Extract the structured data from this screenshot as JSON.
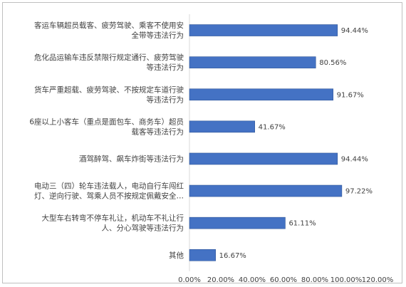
{
  "chart_data": {
    "type": "bar",
    "orientation": "horizontal",
    "title": "",
    "xlabel": "",
    "ylabel": "",
    "categories": [
      [
        "客运车辆超员载客、疲劳驾驶、乘客不使用安",
        "全带等违法行为"
      ],
      [
        "危化品运输车违反禁限行规定通行、疲劳驾驶",
        "等违法行为"
      ],
      [
        "货车严重超载、疲劳驾驶、不按规定车道行驶",
        "等违法行为"
      ],
      [
        "6座以上小客车（重点是面包车、商务车）超员",
        "载客等违法行为"
      ],
      [
        "酒驾醉驾、飙车炸街等违法行为"
      ],
      [
        "电动三（四）轮车违法载人，电动自行车闯红",
        "灯、逆向行驶、驾乘人员不按规定佩戴安全…"
      ],
      [
        "大型车右转弯不停车礼让，机动车不礼让行",
        "人、分心驾驶等违法行为"
      ],
      [
        "其他"
      ]
    ],
    "values": [
      94.44,
      80.56,
      91.67,
      41.67,
      94.44,
      97.22,
      61.11,
      16.67
    ],
    "value_labels": [
      "94.44%",
      "80.56%",
      "91.67%",
      "41.67%",
      "94.44%",
      "97.22%",
      "61.11%",
      "16.67%"
    ],
    "xlim": [
      0,
      120
    ],
    "xticks": [
      "0.00%",
      "20.00%",
      "40.00%",
      "60.00%",
      "80.00%",
      "100.00%",
      "120.00%"
    ],
    "grid": false,
    "legend": "none",
    "bar_color": "#4472C4",
    "bar_border_color": "#2F5597"
  }
}
